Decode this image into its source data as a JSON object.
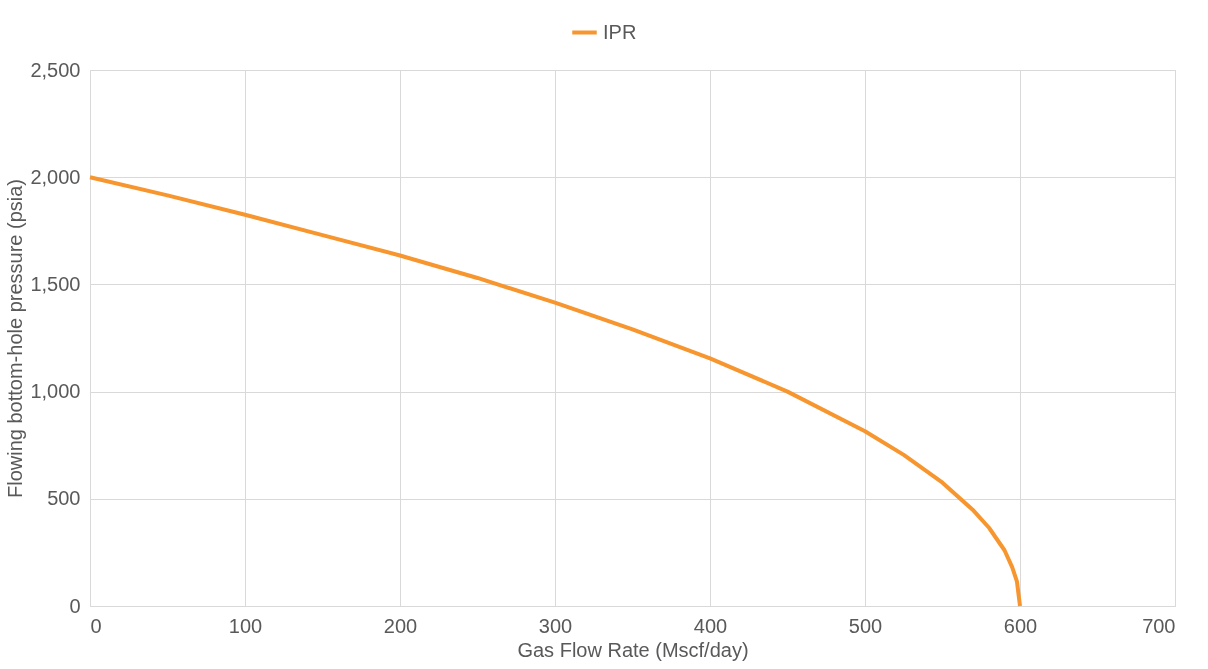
{
  "chart_data": {
    "type": "line",
    "xlabel": "Gas Flow Rate (Mscf/day)",
    "ylabel": "Flowing bottom-hole pressure (psia)",
    "x": [
      0,
      50,
      100,
      150,
      200,
      250,
      300,
      350,
      400,
      450,
      500,
      525,
      550,
      570,
      580,
      590,
      595,
      598,
      600
    ],
    "series": [
      {
        "name": "IPR",
        "color": "#f7962e",
        "values": [
          2000,
          1915,
          1825,
          1730,
          1635,
          1530,
          1415,
          1290,
          1155,
          1000,
          815,
          705,
          575,
          445,
          365,
          260,
          180,
          115,
          0
        ]
      }
    ],
    "xlim": [
      0,
      700
    ],
    "xticks": [
      0,
      100,
      200,
      300,
      400,
      500,
      600,
      700
    ],
    "ylim": [
      0,
      2500
    ],
    "yticks": [
      0,
      500,
      {
        "value": 1000,
        "label": "1,000"
      },
      {
        "value": 1500,
        "label": "1,500"
      },
      {
        "value": 2000,
        "label": "2,000"
      },
      {
        "value": 2500,
        "label": "2,500"
      }
    ],
    "grid": true,
    "legend": "top",
    "marker": "none",
    "line_style": "solid"
  }
}
